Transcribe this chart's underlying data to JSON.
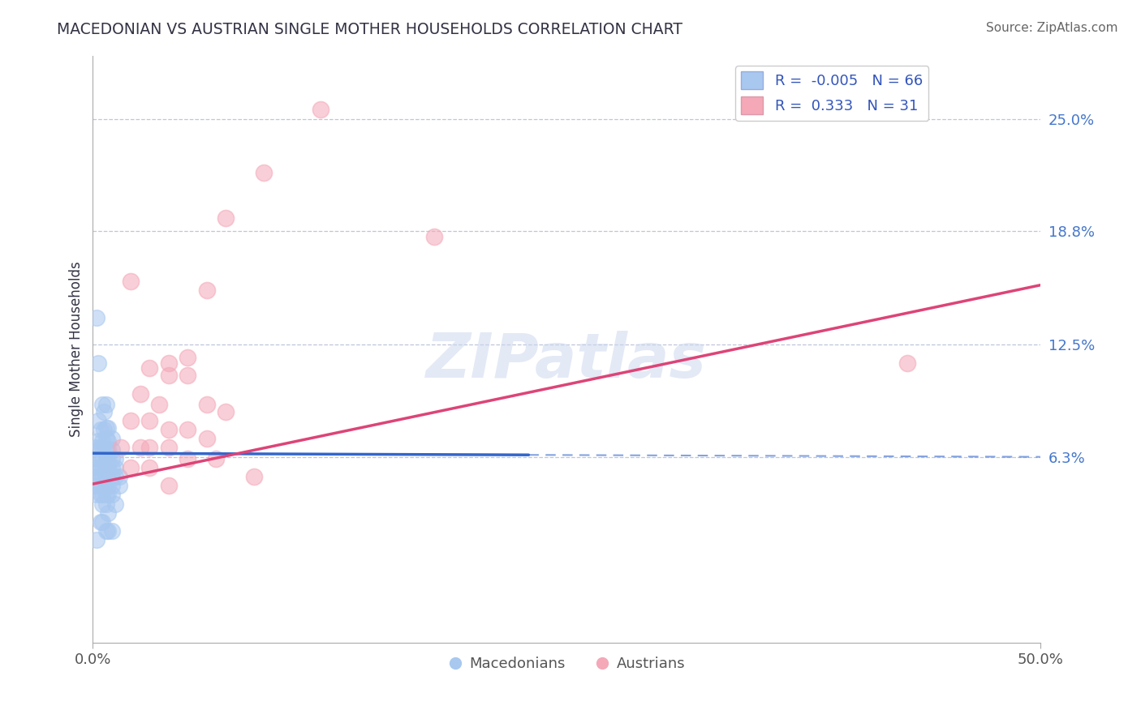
{
  "title": "MACEDONIAN VS AUSTRIAN SINGLE MOTHER HOUSEHOLDS CORRELATION CHART",
  "source": "Source: ZipAtlas.com",
  "ylabel": "Single Mother Households",
  "ytick_labels": [
    "25.0%",
    "18.8%",
    "12.5%",
    "6.3%"
  ],
  "ytick_values": [
    0.25,
    0.188,
    0.125,
    0.063
  ],
  "xlim": [
    0.0,
    0.5
  ],
  "ylim": [
    -0.04,
    0.285
  ],
  "blue_R": -0.005,
  "blue_N": 66,
  "pink_R": 0.333,
  "pink_N": 31,
  "blue_color": "#a8c8f0",
  "pink_color": "#f4a8b8",
  "blue_line_color": "#3366cc",
  "blue_line_solid_end": 0.23,
  "pink_line_color": "#dd4477",
  "blue_scatter": [
    [
      0.002,
      0.14
    ],
    [
      0.003,
      0.115
    ],
    [
      0.005,
      0.092
    ],
    [
      0.006,
      0.088
    ],
    [
      0.007,
      0.092
    ],
    [
      0.003,
      0.083
    ],
    [
      0.004,
      0.078
    ],
    [
      0.006,
      0.078
    ],
    [
      0.007,
      0.079
    ],
    [
      0.008,
      0.079
    ],
    [
      0.003,
      0.072
    ],
    [
      0.005,
      0.072
    ],
    [
      0.007,
      0.073
    ],
    [
      0.008,
      0.072
    ],
    [
      0.01,
      0.073
    ],
    [
      0.002,
      0.068
    ],
    [
      0.004,
      0.068
    ],
    [
      0.005,
      0.068
    ],
    [
      0.007,
      0.067
    ],
    [
      0.008,
      0.067
    ],
    [
      0.01,
      0.067
    ],
    [
      0.002,
      0.062
    ],
    [
      0.004,
      0.062
    ],
    [
      0.005,
      0.062
    ],
    [
      0.007,
      0.062
    ],
    [
      0.008,
      0.062
    ],
    [
      0.01,
      0.062
    ],
    [
      0.012,
      0.062
    ],
    [
      0.002,
      0.057
    ],
    [
      0.004,
      0.057
    ],
    [
      0.005,
      0.057
    ],
    [
      0.007,
      0.057
    ],
    [
      0.008,
      0.057
    ],
    [
      0.01,
      0.057
    ],
    [
      0.012,
      0.057
    ],
    [
      0.002,
      0.052
    ],
    [
      0.004,
      0.052
    ],
    [
      0.005,
      0.052
    ],
    [
      0.007,
      0.052
    ],
    [
      0.008,
      0.052
    ],
    [
      0.01,
      0.052
    ],
    [
      0.012,
      0.052
    ],
    [
      0.014,
      0.052
    ],
    [
      0.002,
      0.047
    ],
    [
      0.004,
      0.047
    ],
    [
      0.005,
      0.047
    ],
    [
      0.007,
      0.047
    ],
    [
      0.008,
      0.047
    ],
    [
      0.01,
      0.047
    ],
    [
      0.014,
      0.047
    ],
    [
      0.002,
      0.042
    ],
    [
      0.004,
      0.042
    ],
    [
      0.005,
      0.042
    ],
    [
      0.007,
      0.042
    ],
    [
      0.008,
      0.042
    ],
    [
      0.01,
      0.042
    ],
    [
      0.012,
      0.037
    ],
    [
      0.005,
      0.037
    ],
    [
      0.007,
      0.037
    ],
    [
      0.008,
      0.032
    ],
    [
      0.004,
      0.027
    ],
    [
      0.005,
      0.027
    ],
    [
      0.007,
      0.022
    ],
    [
      0.008,
      0.022
    ],
    [
      0.01,
      0.022
    ],
    [
      0.002,
      0.017
    ]
  ],
  "pink_scatter": [
    [
      0.12,
      0.255
    ],
    [
      0.07,
      0.195
    ],
    [
      0.09,
      0.22
    ],
    [
      0.18,
      0.185
    ],
    [
      0.02,
      0.16
    ],
    [
      0.06,
      0.155
    ],
    [
      0.04,
      0.115
    ],
    [
      0.05,
      0.118
    ],
    [
      0.03,
      0.112
    ],
    [
      0.04,
      0.108
    ],
    [
      0.05,
      0.108
    ],
    [
      0.025,
      0.098
    ],
    [
      0.035,
      0.092
    ],
    [
      0.06,
      0.092
    ],
    [
      0.07,
      0.088
    ],
    [
      0.02,
      0.083
    ],
    [
      0.03,
      0.083
    ],
    [
      0.04,
      0.078
    ],
    [
      0.05,
      0.078
    ],
    [
      0.06,
      0.073
    ],
    [
      0.015,
      0.068
    ],
    [
      0.025,
      0.068
    ],
    [
      0.03,
      0.068
    ],
    [
      0.04,
      0.068
    ],
    [
      0.05,
      0.062
    ],
    [
      0.065,
      0.062
    ],
    [
      0.02,
      0.057
    ],
    [
      0.03,
      0.057
    ],
    [
      0.085,
      0.052
    ],
    [
      0.04,
      0.047
    ],
    [
      0.43,
      0.115
    ]
  ],
  "watermark_text": "ZIPatlas",
  "watermark_fontsize": 55,
  "blue_line_y0": 0.065,
  "blue_line_y1": 0.063,
  "pink_line_y0": 0.048,
  "pink_line_y1": 0.158
}
